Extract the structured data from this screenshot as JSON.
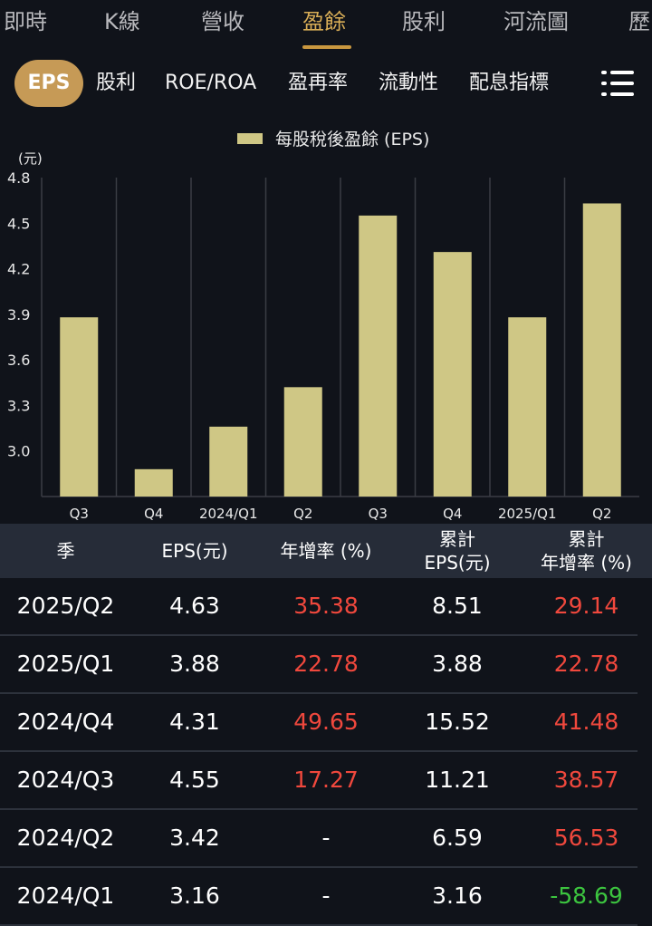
{
  "top_tabs": [
    "即時",
    "K線",
    "營收",
    "盈餘",
    "股利",
    "河流圖",
    "歷"
  ],
  "sub_tabs": [
    "EPS",
    "股利",
    "ROE/ROA",
    "盈再率",
    "流動性",
    "配息指標"
  ],
  "chart_data": {
    "type": "bar",
    "legend": "每股稅後盈餘 (EPS)",
    "unit": "(元)",
    "categories": [
      "Q3",
      "Q4",
      "2024/Q1",
      "Q2",
      "Q3",
      "Q4",
      "2025/Q1",
      "Q2"
    ],
    "values": [
      3.88,
      2.88,
      3.16,
      3.42,
      4.55,
      4.31,
      3.88,
      4.63
    ],
    "y_ticks": [
      "4.8",
      "4.5",
      "4.2",
      "3.9",
      "3.6",
      "3.3",
      "3.0"
    ],
    "ylim": [
      2.7,
      4.8
    ],
    "bar_color": "#cfc785",
    "grid": "vertical"
  },
  "table": {
    "headers": [
      "季",
      "EPS(元)",
      "年增率 (%)",
      "累計\nEPS(元)",
      "累計\n年增率 (%)"
    ],
    "rows": [
      {
        "season": "2025/Q2",
        "eps": "4.63",
        "yoy": "35.38",
        "cum_eps": "8.51",
        "cum_yoy": "29.14",
        "yoy_color": "red",
        "cum_color": "red"
      },
      {
        "season": "2025/Q1",
        "eps": "3.88",
        "yoy": "22.78",
        "cum_eps": "3.88",
        "cum_yoy": "22.78",
        "yoy_color": "red",
        "cum_color": "red"
      },
      {
        "season": "2024/Q4",
        "eps": "4.31",
        "yoy": "49.65",
        "cum_eps": "15.52",
        "cum_yoy": "41.48",
        "yoy_color": "red",
        "cum_color": "red"
      },
      {
        "season": "2024/Q3",
        "eps": "4.55",
        "yoy": "17.27",
        "cum_eps": "11.21",
        "cum_yoy": "38.57",
        "yoy_color": "red",
        "cum_color": "red"
      },
      {
        "season": "2024/Q2",
        "eps": "3.42",
        "yoy": "-",
        "cum_eps": "6.59",
        "cum_yoy": "56.53",
        "yoy_color": "white",
        "cum_color": "red"
      },
      {
        "season": "2024/Q1",
        "eps": "3.16",
        "yoy": "-",
        "cum_eps": "3.16",
        "cum_yoy": "-58.69",
        "yoy_color": "white",
        "cum_color": "green"
      }
    ]
  }
}
